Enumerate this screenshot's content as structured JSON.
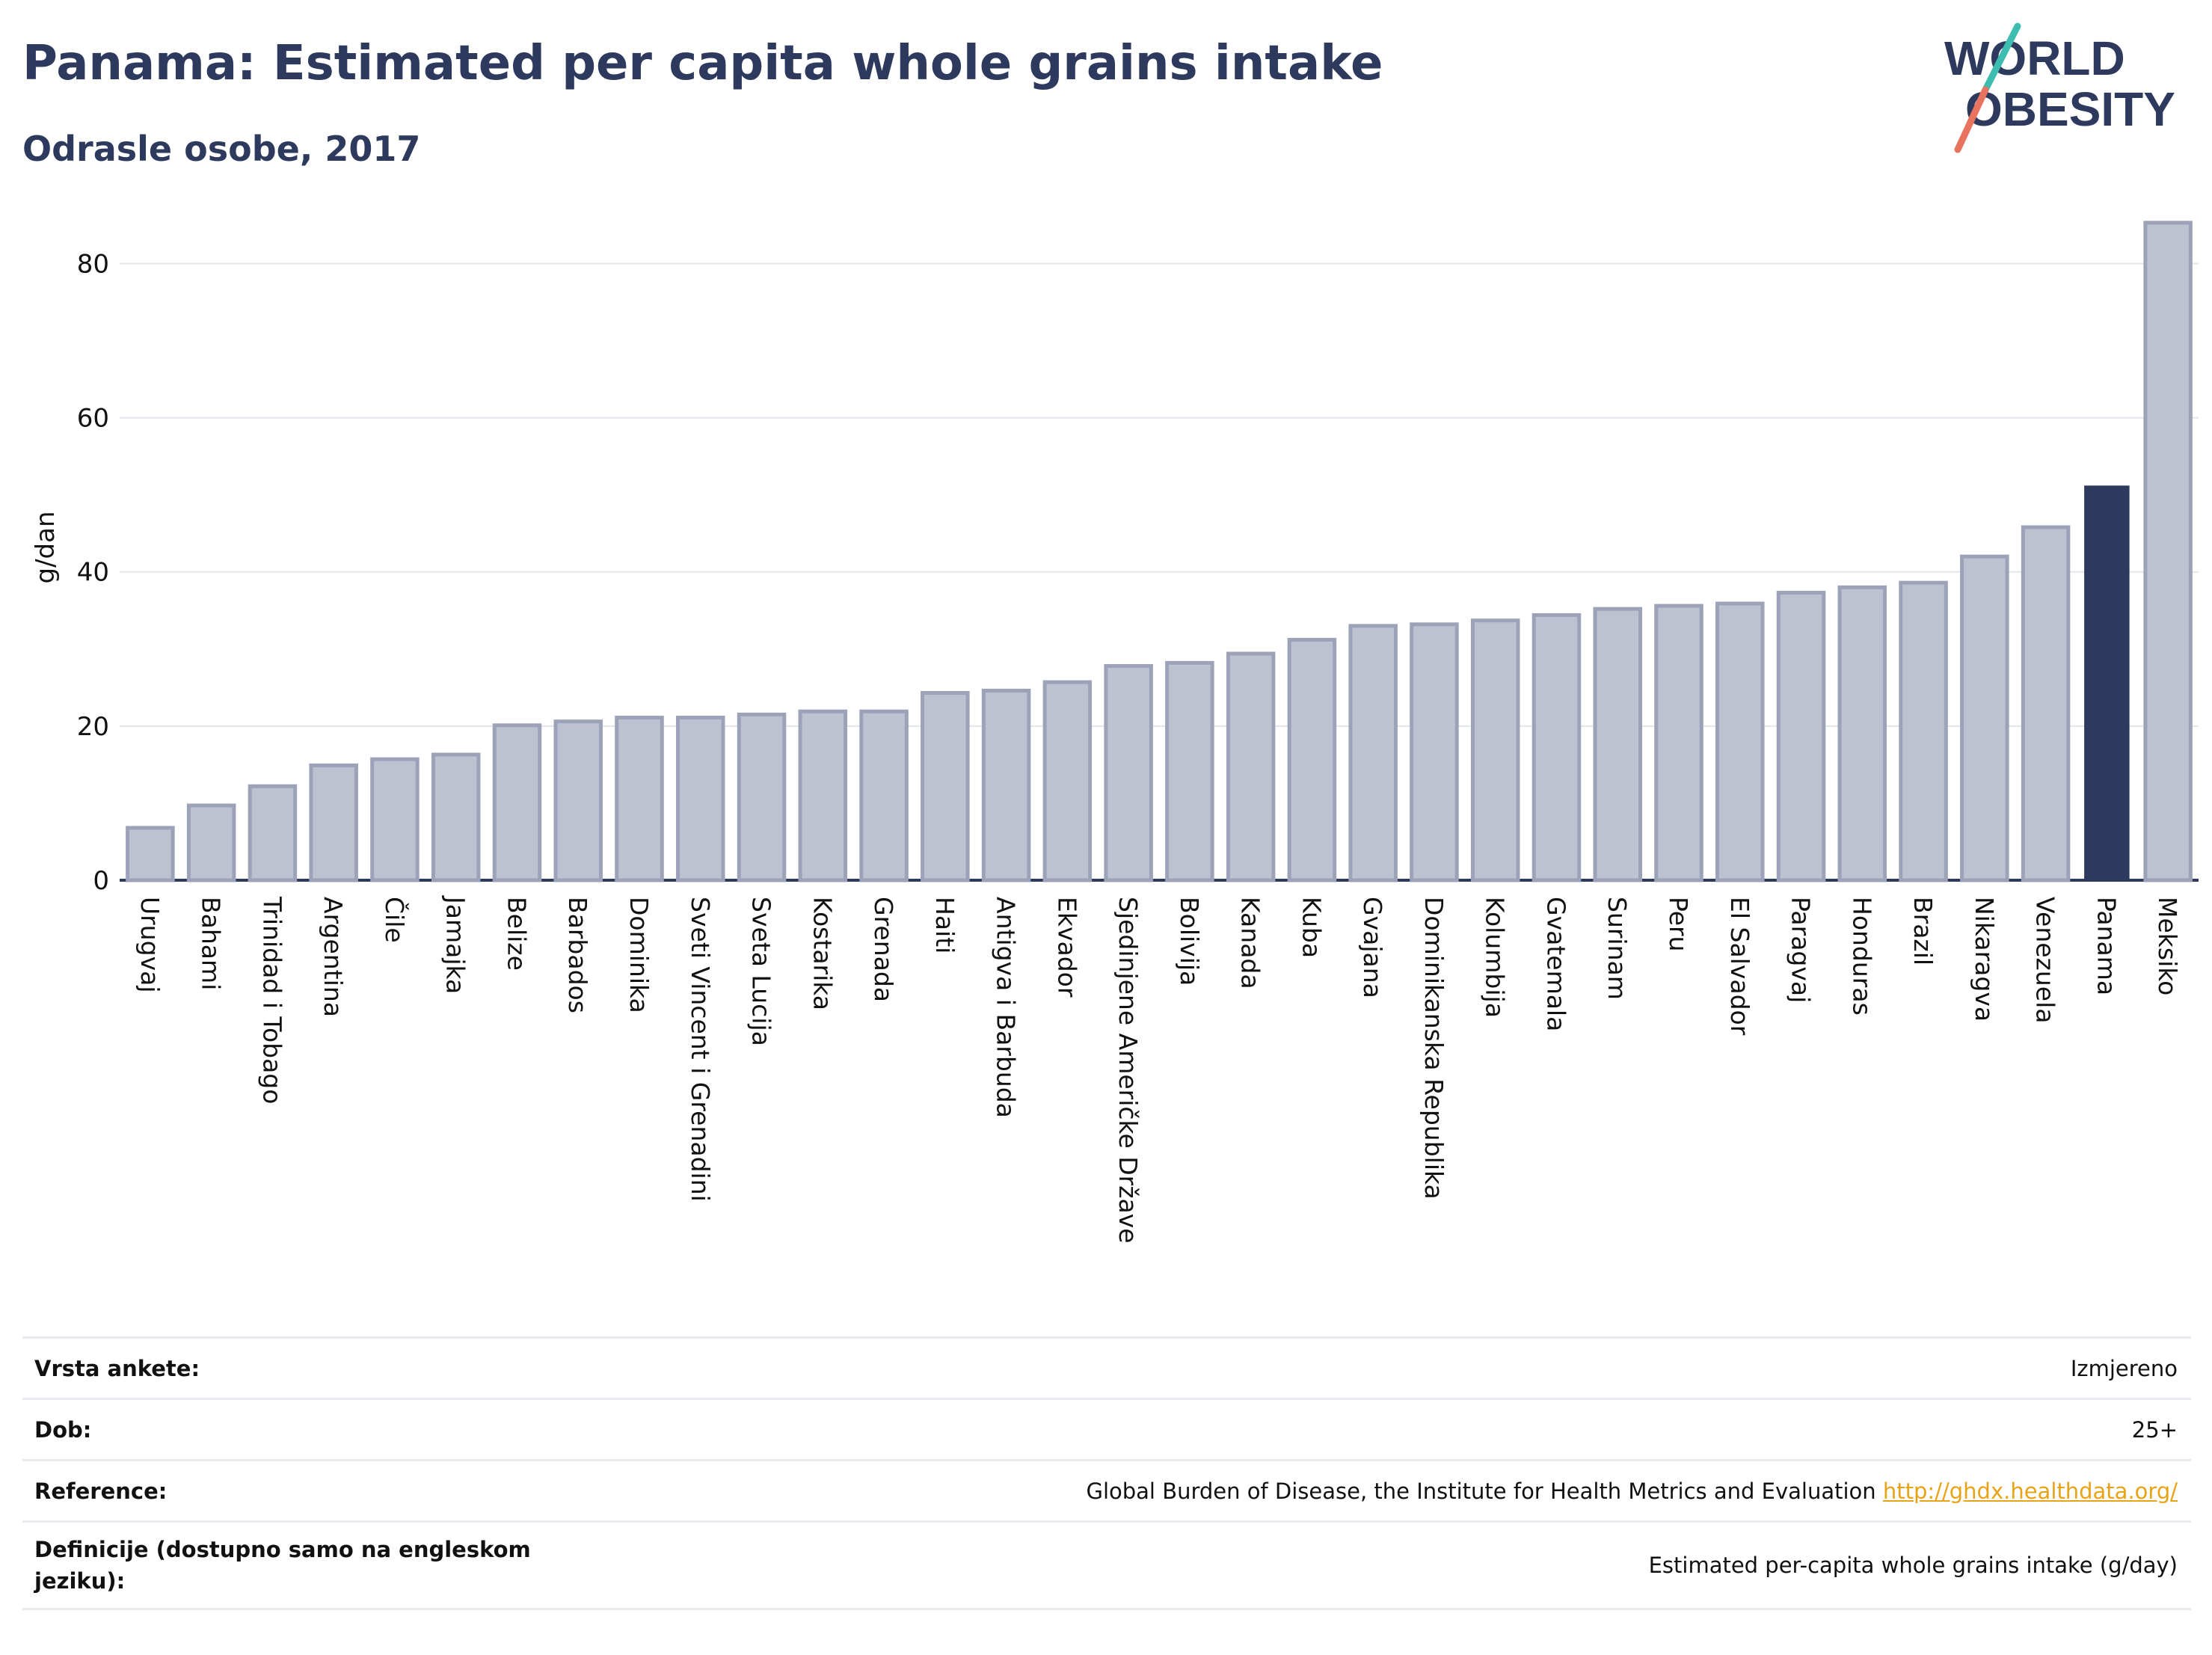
{
  "header": {
    "title": "Panama: Estimated per capita whole grains intake",
    "subtitle": "Odrasle osobe, 2017"
  },
  "logo": {
    "line1": "WORLD",
    "line2": "OBESITY",
    "accent_teal": "#3dbdb0",
    "accent_coral": "#e8735f"
  },
  "colors": {
    "bar_default": "#bec2d0",
    "bar_border": "#9ca2b8",
    "bar_highlight": "#2d3a5e",
    "text_dark": "#2d3a5e"
  },
  "chart_data": {
    "type": "bar",
    "ylabel": "g/dan",
    "ylim": [
      0,
      88
    ],
    "yticks": [
      0,
      20,
      40,
      60,
      80
    ],
    "grid": true,
    "highlight": "Panama",
    "categories": [
      "Urugvaj",
      "Bahami",
      "Trinidad i Tobago",
      "Argentina",
      "Čile",
      "Jamajka",
      "Belize",
      "Barbados",
      "Dominika",
      "Sveti Vincent i Grenadini",
      "Sveta Lucija",
      "Kostarika",
      "Grenada",
      "Haiti",
      "Antigva i Barbuda",
      "Ekvador",
      "Sjedinjene Američke Države",
      "Bolivija",
      "Kanada",
      "Kuba",
      "Gvajana",
      "Dominikanska Republika",
      "Kolumbija",
      "Gvatemala",
      "Surinam",
      "Peru",
      "El Salvador",
      "Paragvaj",
      "Honduras",
      "Brazil",
      "Nikaragva",
      "Venezuela",
      "Panama",
      "Meksiko"
    ],
    "values": [
      6.8,
      9.7,
      12.2,
      14.9,
      15.7,
      16.3,
      20.1,
      20.6,
      21.1,
      21.1,
      21.5,
      21.9,
      21.9,
      24.3,
      24.6,
      25.7,
      27.8,
      28.2,
      29.4,
      31.2,
      33.0,
      33.2,
      33.7,
      34.4,
      35.2,
      35.6,
      35.9,
      37.3,
      38.0,
      38.6,
      42.0,
      45.8,
      51.2,
      85.3
    ]
  },
  "info": {
    "rows": [
      {
        "label": "Vrsta ankete:",
        "value": "Izmjereno"
      },
      {
        "label": "Dob:",
        "value": "25+"
      },
      {
        "label": "Reference:",
        "value": "Global Burden of Disease, the Institute for Health Metrics and Evaluation",
        "link": "http://ghdx.healthdata.org/"
      },
      {
        "label": "Definicije (dostupno samo na engleskom jeziku):",
        "value": "Estimated per-capita whole grains intake (g/day)"
      }
    ]
  }
}
